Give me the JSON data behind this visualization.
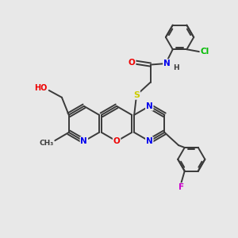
{
  "background_color": "#e8e8e8",
  "bond_color": "#3a3a3a",
  "atom_colors": {
    "N": "#0000ee",
    "O": "#ee0000",
    "S": "#cccc00",
    "F": "#cc00cc",
    "Cl": "#00bb00",
    "H": "#3a3a3a",
    "C": "#3a3a3a"
  },
  "figsize": [
    3.0,
    3.0
  ],
  "dpi": 100
}
